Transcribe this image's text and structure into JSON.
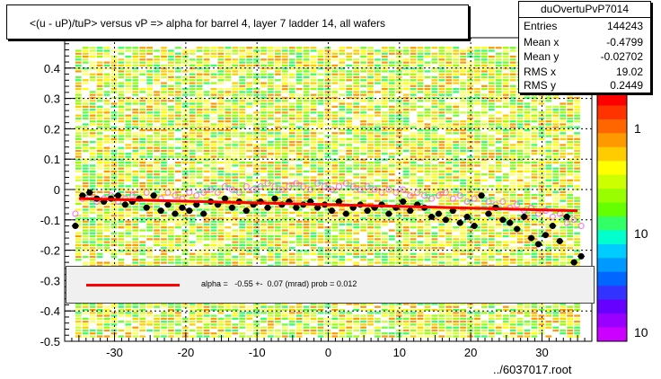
{
  "title": "<(u - uP)/tuP> versus  vP => alpha for barrel 4, layer 7 ladder 14, all wafers",
  "stats": {
    "name": "duOvertuPvP7014",
    "rows": [
      {
        "label": "Entries",
        "value": "144243"
      },
      {
        "label": "Mean x",
        "value": "-0.4799"
      },
      {
        "label": "Mean y",
        "value": "-0.02702"
      },
      {
        "label": "RMS x",
        "value": "19.02"
      },
      {
        "label": "RMS y",
        "value": "0.2449"
      }
    ]
  },
  "fit_legend": "alpha =   -0.55 +-  0.07 (mrad) prob = 0.012",
  "footer": "../6037017.root",
  "colors": {
    "fit": "#ff0000",
    "points": "#000000",
    "open_points": "#ff66ff"
  },
  "chart_data": {
    "type": "scatter",
    "xlim": [
      -37,
      37
    ],
    "ylim": [
      -0.5,
      0.5
    ],
    "x_ticks": [
      -30,
      -20,
      -10,
      0,
      10,
      20,
      30
    ],
    "y_ticks": [
      0.4,
      0.3,
      0.2,
      0.1,
      0,
      -0.1,
      -0.2,
      -0.3,
      -0.4,
      -0.5
    ],
    "z_scale": "log",
    "z_tick_labels": [
      "1",
      "10",
      "10"
    ],
    "grid": true,
    "fit_line": {
      "x": [
        -35,
        35
      ],
      "y": [
        -0.03,
        -0.07
      ]
    },
    "mean_points": {
      "x": [
        -35.5,
        -34.5,
        -33.5,
        -32.5,
        -31.5,
        -30.5,
        -29.5,
        -28.5,
        -27.5,
        -26.5,
        -25.5,
        -24.5,
        -23.5,
        -22.5,
        -21.5,
        -20.5,
        -19.5,
        -18.5,
        -17.5,
        -16.5,
        -15.5,
        -14.5,
        -13.5,
        -12.5,
        -11.5,
        -10.5,
        -9.5,
        -8.5,
        -7.5,
        -6.5,
        -5.5,
        -4.5,
        -3.5,
        -2.5,
        -1.5,
        -0.5,
        0.5,
        1.5,
        2.5,
        3.5,
        4.5,
        5.5,
        6.5,
        7.5,
        8.5,
        9.5,
        10.5,
        11.5,
        12.5,
        13.5,
        14.5,
        15.5,
        16.5,
        17.5,
        18.5,
        19.5,
        20.5,
        21.5,
        22.5,
        23.5,
        24.5,
        25.5,
        26.5,
        27.5,
        28.5,
        29.5,
        30.5,
        31.5,
        32.5,
        33.5,
        34.5,
        35.5
      ],
      "y": [
        -0.12,
        -0.02,
        -0.01,
        -0.03,
        -0.04,
        -0.03,
        -0.02,
        -0.05,
        -0.04,
        -0.03,
        -0.06,
        -0.02,
        -0.07,
        -0.05,
        -0.08,
        -0.06,
        -0.07,
        -0.05,
        -0.08,
        -0.04,
        -0.05,
        -0.03,
        -0.06,
        -0.04,
        -0.07,
        -0.05,
        -0.04,
        -0.06,
        -0.03,
        -0.05,
        -0.04,
        -0.06,
        -0.05,
        -0.04,
        -0.06,
        -0.05,
        -0.07,
        -0.04,
        -0.08,
        -0.06,
        -0.05,
        -0.07,
        -0.06,
        -0.05,
        -0.08,
        -0.06,
        -0.04,
        -0.07,
        -0.05,
        -0.06,
        -0.09,
        -0.08,
        -0.1,
        -0.07,
        -0.11,
        -0.09,
        -0.12,
        -0.02,
        -0.08,
        -0.06,
        -0.1,
        -0.11,
        -0.13,
        -0.09,
        -0.16,
        -0.18,
        -0.15,
        -0.12,
        -0.17,
        -0.09,
        -0.24,
        -0.22
      ]
    },
    "open_points": {
      "x": [
        -35.5,
        -34.5,
        -33.5,
        -32.5,
        -31.5,
        -30.5,
        -29.5,
        -28.5,
        -27.5,
        -26.5,
        -25.5,
        -24.5,
        -23.5,
        -22.5,
        -21.5,
        -20.5,
        -19.5,
        -18.5,
        -17.5,
        -16.5,
        -15.5,
        -14.5,
        -13.5,
        -12.5,
        -11.5,
        -10.5,
        -9.5,
        -8.5,
        -7.5,
        -6.5,
        -5.5,
        -4.5,
        -3.5,
        -2.5,
        -1.5,
        -0.5,
        0.5,
        1.5,
        2.5,
        3.5,
        4.5,
        5.5,
        6.5,
        7.5,
        8.5,
        9.5,
        10.5,
        11.5,
        12.5,
        13.5,
        14.5,
        15.5,
        16.5,
        17.5,
        18.5,
        19.5,
        20.5,
        21.5,
        22.5,
        23.5,
        24.5,
        25.5,
        26.5,
        27.5,
        28.5,
        29.5,
        30.5,
        31.5,
        32.5,
        33.5,
        34.5,
        35.5
      ],
      "y": [
        -0.08,
        -0.03,
        -0.02,
        -0.04,
        -0.03,
        -0.02,
        -0.04,
        -0.03,
        -0.02,
        -0.03,
        -0.01,
        -0.02,
        -0.03,
        -0.01,
        -0.02,
        -0.03,
        -0.01,
        -0.02,
        -0.01,
        0.0,
        -0.01,
        0.01,
        0.0,
        -0.01,
        0.01,
        0.0,
        0.01,
        0.02,
        0.01,
        0.0,
        0.01,
        0.02,
        0.01,
        0.0,
        0.02,
        0.01,
        0.0,
        0.01,
        0.02,
        0.01,
        0.0,
        0.01,
        0.0,
        -0.01,
        0.0,
        -0.01,
        0.0,
        -0.02,
        -0.01,
        -0.02,
        -0.03,
        -0.02,
        -0.01,
        -0.03,
        -0.02,
        -0.04,
        -0.03,
        -0.02,
        -0.04,
        -0.05,
        -0.04,
        -0.06,
        -0.05,
        -0.07,
        -0.06,
        -0.08,
        -0.07,
        -0.09,
        -0.08,
        -0.11,
        -0.1,
        -0.12
      ]
    }
  }
}
